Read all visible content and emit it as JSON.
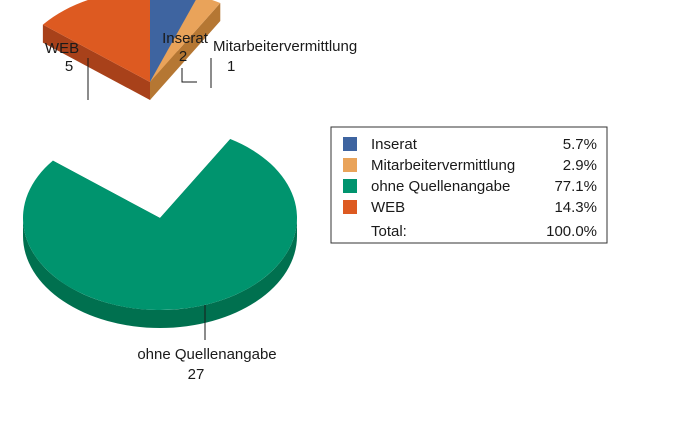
{
  "chart_data": {
    "type": "pie",
    "title": "",
    "exploded": true,
    "three_d": true,
    "slices": [
      {
        "label": "Inserat",
        "value": 2,
        "percent": "5.7%",
        "color": "#3e64a0",
        "side": "#2c4a78"
      },
      {
        "label": "Mitarbeitervermittlung",
        "value": 1,
        "percent": "2.9%",
        "color": "#e9a35a",
        "side": "#b57733"
      },
      {
        "label": "ohne Quellenangabe",
        "value": 27,
        "percent": "77.1%",
        "color": "#00946e",
        "side": "#00704f"
      },
      {
        "label": "WEB",
        "value": 5,
        "percent": "14.3%",
        "color": "#dd5a21",
        "side": "#a8411a"
      }
    ],
    "legend": {
      "placement": "right",
      "total_label": "Total:",
      "total_percent": "100.0%"
    }
  }
}
